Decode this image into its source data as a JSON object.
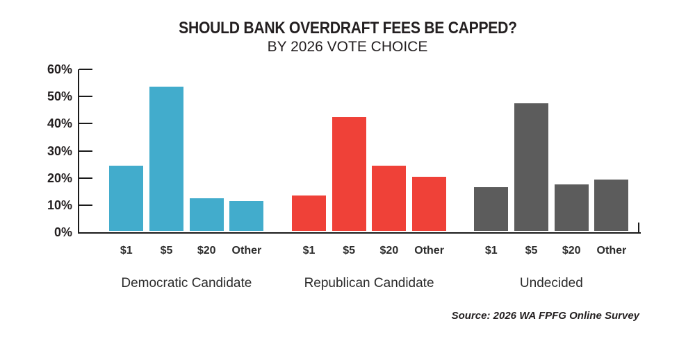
{
  "title": "SHOULD BANK OVERDRAFT FEES BE CAPPED?",
  "subtitle": "BY 2026 VOTE CHOICE",
  "source": "Source: 2026 WA FPFG Online Survey",
  "colors": {
    "democratic": "#42ACCC",
    "republican": "#EF4138",
    "undecided": "#5C5C5C",
    "axis": "#1A1A1A",
    "text": "#231F20"
  },
  "chart_data": {
    "type": "bar",
    "title": "SHOULD BANK OVERDRAFT FEES BE CAPPED?",
    "subtitle": "BY 2026 VOTE CHOICE",
    "categories": [
      "$1",
      "$5",
      "$20",
      "Other"
    ],
    "groups": [
      {
        "name": "Democratic Candidate",
        "color": "#42ACCC",
        "values": [
          24,
          53,
          12,
          11
        ]
      },
      {
        "name": "Republican Candidate",
        "color": "#EF4138",
        "values": [
          13,
          42,
          24,
          20
        ]
      },
      {
        "name": "Undecided",
        "color": "#5C5C5C",
        "values": [
          16,
          47,
          17,
          19
        ]
      }
    ],
    "xlabel": "",
    "ylabel": "",
    "ylim": [
      0,
      60
    ],
    "ytick_step": 10,
    "ytick_labels": [
      "0%",
      "10%",
      "20%",
      "30%",
      "40%",
      "50%",
      "60%"
    ],
    "grid": false,
    "legend": false,
    "source": "Source: 2026 WA FPFG Online Survey"
  }
}
